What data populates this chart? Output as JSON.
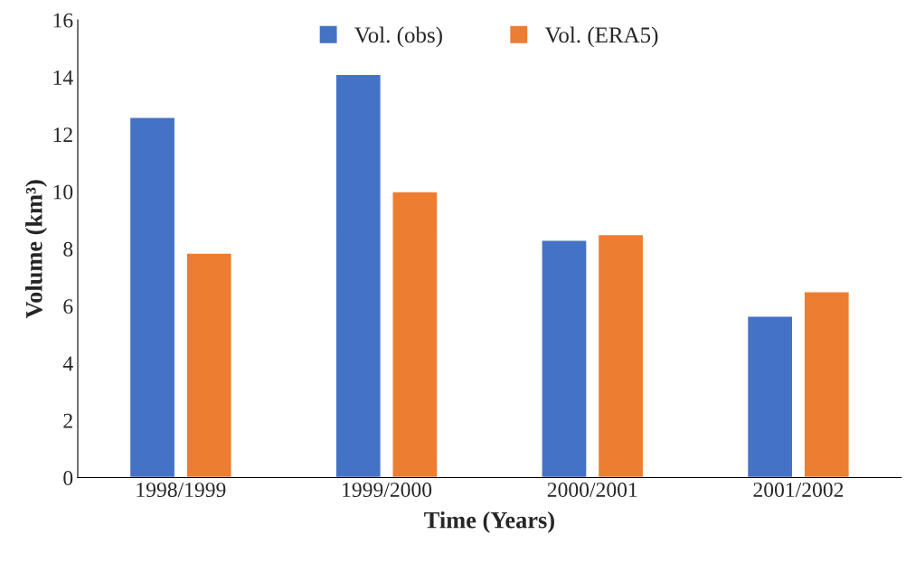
{
  "chart_data": {
    "type": "bar",
    "xlabel": "Time (Years)",
    "ylabel": "Volume (km³)",
    "categories": [
      "1998/1999",
      "1999/2000",
      "2000/2001",
      "2001/2002"
    ],
    "series": [
      {
        "name": "Vol. (obs)",
        "color": "#4472c4",
        "values": [
          12.6,
          14.1,
          8.3,
          5.65
        ]
      },
      {
        "name": "Vol. (ERA5)",
        "color": "#ed7d31",
        "values": [
          7.85,
          10.0,
          8.5,
          6.5
        ]
      }
    ],
    "ylim": [
      0,
      16
    ],
    "yticks": [
      0,
      2,
      4,
      6,
      8,
      10,
      12,
      14,
      16
    ],
    "grid": false,
    "legend": "top"
  }
}
